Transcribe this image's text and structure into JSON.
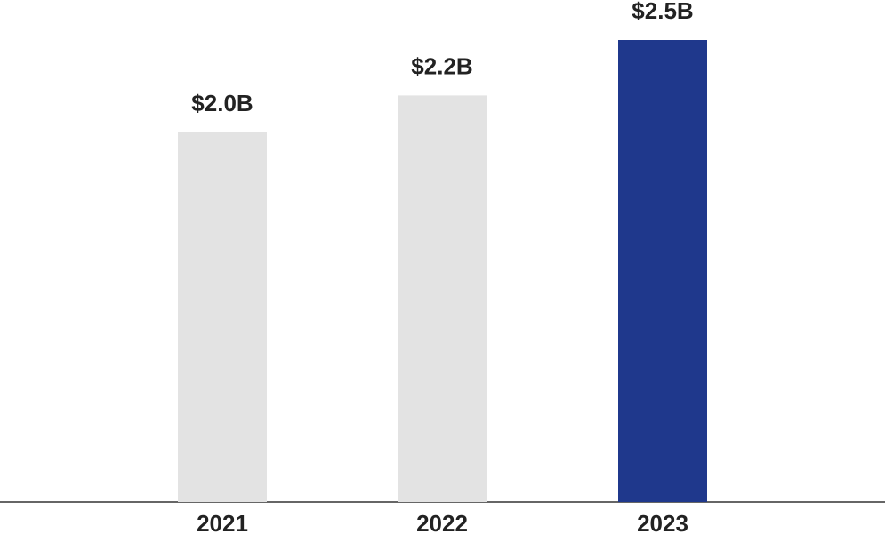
{
  "chart_data": {
    "type": "bar",
    "categories": [
      "2021",
      "2022",
      "2023"
    ],
    "values": [
      2.0,
      2.2,
      2.5
    ],
    "value_labels": [
      "$2.0B",
      "$2.2B",
      "$2.5B"
    ],
    "colors": [
      "#e3e3e3",
      "#e3e3e3",
      "#1f388c"
    ]
  }
}
